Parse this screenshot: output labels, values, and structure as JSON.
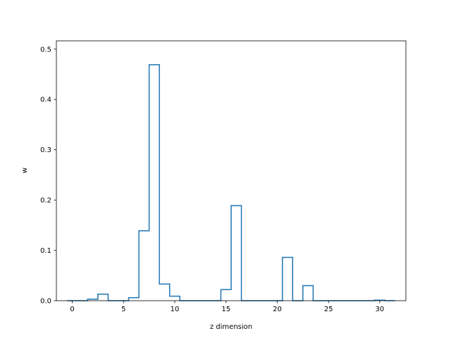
{
  "chart_data": {
    "type": "step-histogram",
    "title": "",
    "xlabel": "z dimension",
    "ylabel": "w",
    "x": [
      0,
      1,
      2,
      3,
      4,
      5,
      6,
      7,
      8,
      9,
      10,
      11,
      12,
      13,
      14,
      15,
      16,
      17,
      18,
      19,
      20,
      21,
      22,
      23,
      24,
      25,
      26,
      27,
      28,
      29,
      30,
      31
    ],
    "values": [
      0,
      0,
      0.003,
      0.013,
      0,
      0,
      0.006,
      0.139,
      0.469,
      0.033,
      0.009,
      0,
      0,
      0,
      0,
      0.022,
      0.189,
      0,
      0,
      0,
      0,
      0.086,
      0,
      0.03,
      0,
      0,
      0,
      0,
      0,
      0,
      0.001,
      0
    ],
    "xlim": [
      -1.55,
      32.55
    ],
    "ylim": [
      0,
      0.5165
    ],
    "xticks": [
      0,
      5,
      10,
      15,
      20,
      25,
      30
    ],
    "yticks": [
      0.0,
      0.1,
      0.2,
      0.3,
      0.4,
      0.5
    ],
    "xtick_labels": [
      "0",
      "5",
      "10",
      "15",
      "20",
      "25",
      "30"
    ],
    "ytick_labels": [
      "0.0",
      "0.1",
      "0.2",
      "0.3",
      "0.4",
      "0.5"
    ],
    "line_color": "#1f77b4",
    "grid": false,
    "legend": false
  }
}
